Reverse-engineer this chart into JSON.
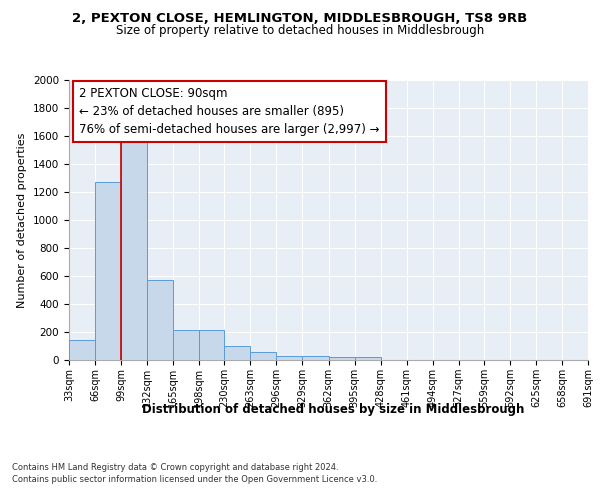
{
  "title1": "2, PEXTON CLOSE, HEMLINGTON, MIDDLESBROUGH, TS8 9RB",
  "title2": "Size of property relative to detached houses in Middlesbrough",
  "xlabel": "Distribution of detached houses by size in Middlesbrough",
  "ylabel": "Number of detached properties",
  "bar_edges": [
    33,
    66,
    99,
    132,
    165,
    198,
    230,
    263,
    296,
    329,
    362,
    395,
    428,
    461,
    494,
    527,
    559,
    592,
    625,
    658,
    691
  ],
  "bar_heights": [
    140,
    1270,
    1570,
    570,
    215,
    215,
    100,
    55,
    30,
    30,
    20,
    20,
    0,
    0,
    0,
    0,
    0,
    0,
    0,
    0
  ],
  "bar_color": "#c8d8eb",
  "bar_edge_color": "#5b9bd5",
  "bg_color": "#e8eef6",
  "grid_color": "#ffffff",
  "red_line_x": 99,
  "annotation_line1": "2 PEXTON CLOSE: 90sqm",
  "annotation_line2": "← 23% of detached houses are smaller (895)",
  "annotation_line3": "76% of semi-detached houses are larger (2,997) →",
  "annotation_box_color": "#cc0000",
  "ylim": [
    0,
    2000
  ],
  "yticks": [
    0,
    200,
    400,
    600,
    800,
    1000,
    1200,
    1400,
    1600,
    1800,
    2000
  ],
  "tick_labels": [
    "33sqm",
    "66sqm",
    "99sqm",
    "132sqm",
    "165sqm",
    "198sqm",
    "230sqm",
    "263sqm",
    "296sqm",
    "329sqm",
    "362sqm",
    "395sqm",
    "428sqm",
    "461sqm",
    "494sqm",
    "527sqm",
    "559sqm",
    "592sqm",
    "625sqm",
    "658sqm",
    "691sqm"
  ],
  "footnote1": "Contains HM Land Registry data © Crown copyright and database right 2024.",
  "footnote2": "Contains public sector information licensed under the Open Government Licence v3.0."
}
